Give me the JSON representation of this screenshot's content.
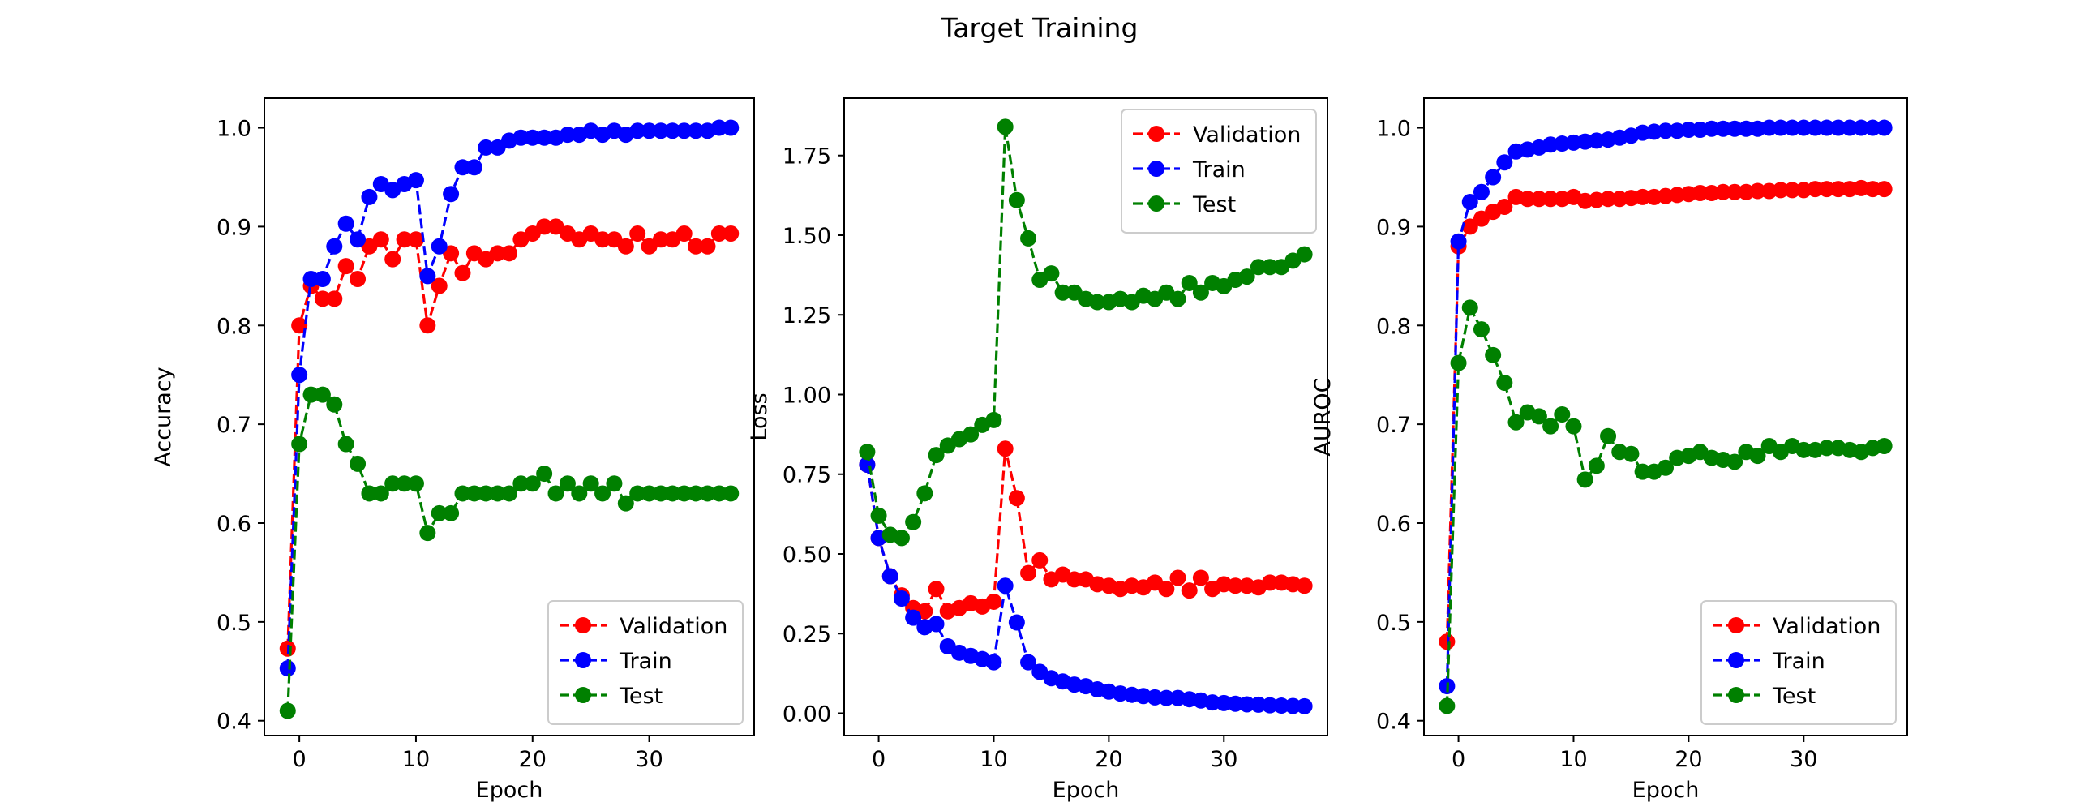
{
  "figure": {
    "title": "Target Training"
  },
  "legend_labels": [
    "Validation",
    "Train",
    "Test"
  ],
  "series_colors": {
    "Validation": "#ff0000",
    "Train": "#0000ff",
    "Test": "#008000"
  },
  "chart_data": [
    {
      "type": "line",
      "xlabel": "Epoch",
      "ylabel": "Accuracy",
      "xlim": [
        -3,
        39
      ],
      "ylim": [
        0.385,
        1.03
      ],
      "x_ticks": [
        0,
        10,
        20,
        30
      ],
      "y_ticks": [
        0.4,
        0.5,
        0.6,
        0.7,
        0.8,
        0.9,
        1.0
      ],
      "y_tick_labels": [
        "0.4",
        "0.5",
        "0.6",
        "0.7",
        "0.8",
        "0.9",
        "1.0"
      ],
      "grid": false,
      "legend_position": "lower-right",
      "x": [
        -1,
        0,
        1,
        2,
        3,
        4,
        5,
        6,
        7,
        8,
        9,
        10,
        11,
        12,
        13,
        14,
        15,
        16,
        17,
        18,
        19,
        20,
        21,
        22,
        23,
        24,
        25,
        26,
        27,
        28,
        29,
        30,
        31,
        32,
        33,
        34,
        35,
        36,
        37
      ],
      "series": [
        {
          "name": "Validation",
          "color": "#ff0000",
          "values": [
            0.473,
            0.8,
            0.84,
            0.827,
            0.827,
            0.86,
            0.847,
            0.88,
            0.887,
            0.867,
            0.887,
            0.887,
            0.8,
            0.84,
            0.873,
            0.853,
            0.873,
            0.867,
            0.873,
            0.873,
            0.887,
            0.893,
            0.9,
            0.9,
            0.893,
            0.887,
            0.893,
            0.887,
            0.887,
            0.88,
            0.893,
            0.88,
            0.887,
            0.887,
            0.893,
            0.88,
            0.88,
            0.893,
            0.893
          ]
        },
        {
          "name": "Train",
          "color": "#0000ff",
          "values": [
            0.453,
            0.75,
            0.847,
            0.847,
            0.88,
            0.903,
            0.887,
            0.93,
            0.943,
            0.937,
            0.943,
            0.947,
            0.85,
            0.88,
            0.933,
            0.96,
            0.96,
            0.98,
            0.98,
            0.987,
            0.99,
            0.99,
            0.99,
            0.99,
            0.993,
            0.993,
            0.997,
            0.993,
            0.997,
            0.993,
            0.997,
            0.997,
            0.997,
            0.997,
            0.997,
            0.997,
            0.997,
            1.0,
            1.0
          ]
        },
        {
          "name": "Test",
          "color": "#008000",
          "values": [
            0.41,
            0.68,
            0.73,
            0.73,
            0.72,
            0.68,
            0.66,
            0.63,
            0.63,
            0.64,
            0.64,
            0.64,
            0.59,
            0.61,
            0.61,
            0.63,
            0.63,
            0.63,
            0.63,
            0.63,
            0.64,
            0.64,
            0.65,
            0.63,
            0.64,
            0.63,
            0.64,
            0.63,
            0.64,
            0.62,
            0.63,
            0.63,
            0.63,
            0.63,
            0.63,
            0.63,
            0.63,
            0.63,
            0.63
          ]
        }
      ]
    },
    {
      "type": "line",
      "xlabel": "Epoch",
      "ylabel": "Loss",
      "xlim": [
        -3,
        39
      ],
      "ylim": [
        -0.07,
        1.93
      ],
      "x_ticks": [
        0,
        10,
        20,
        30
      ],
      "y_ticks": [
        0.0,
        0.25,
        0.5,
        0.75,
        1.0,
        1.25,
        1.5,
        1.75
      ],
      "y_tick_labels": [
        "0.00",
        "0.25",
        "0.50",
        "0.75",
        "1.00",
        "1.25",
        "1.50",
        "1.75"
      ],
      "grid": false,
      "legend_position": "upper-right",
      "x": [
        -1,
        0,
        1,
        2,
        3,
        4,
        5,
        6,
        7,
        8,
        9,
        10,
        11,
        12,
        13,
        14,
        15,
        16,
        17,
        18,
        19,
        20,
        21,
        22,
        23,
        24,
        25,
        26,
        27,
        28,
        29,
        30,
        31,
        32,
        33,
        34,
        35,
        36,
        37
      ],
      "series": [
        {
          "name": "Validation",
          "color": "#ff0000",
          "values": [
            0.78,
            0.55,
            0.43,
            0.37,
            0.33,
            0.32,
            0.39,
            0.32,
            0.33,
            0.345,
            0.335,
            0.35,
            0.83,
            0.675,
            0.44,
            0.48,
            0.42,
            0.435,
            0.42,
            0.42,
            0.405,
            0.4,
            0.39,
            0.4,
            0.395,
            0.41,
            0.39,
            0.425,
            0.385,
            0.425,
            0.39,
            0.405,
            0.4,
            0.4,
            0.395,
            0.41,
            0.41,
            0.405,
            0.4
          ]
        },
        {
          "name": "Train",
          "color": "#0000ff",
          "values": [
            0.78,
            0.55,
            0.43,
            0.36,
            0.3,
            0.27,
            0.28,
            0.21,
            0.19,
            0.18,
            0.17,
            0.16,
            0.4,
            0.285,
            0.16,
            0.13,
            0.11,
            0.1,
            0.09,
            0.085,
            0.075,
            0.068,
            0.062,
            0.058,
            0.054,
            0.05,
            0.048,
            0.048,
            0.044,
            0.04,
            0.034,
            0.032,
            0.03,
            0.028,
            0.027,
            0.025,
            0.024,
            0.023,
            0.022
          ]
        },
        {
          "name": "Test",
          "color": "#008000",
          "values": [
            0.82,
            0.62,
            0.56,
            0.55,
            0.6,
            0.69,
            0.81,
            0.84,
            0.86,
            0.875,
            0.905,
            0.92,
            1.84,
            1.61,
            1.49,
            1.36,
            1.38,
            1.32,
            1.32,
            1.3,
            1.29,
            1.29,
            1.3,
            1.29,
            1.31,
            1.3,
            1.32,
            1.3,
            1.35,
            1.32,
            1.35,
            1.34,
            1.36,
            1.37,
            1.4,
            1.4,
            1.4,
            1.42,
            1.44
          ]
        }
      ]
    },
    {
      "type": "line",
      "xlabel": "Epoch",
      "ylabel": "AUROC",
      "xlim": [
        -3,
        39
      ],
      "ylim": [
        0.385,
        1.03
      ],
      "x_ticks": [
        0,
        10,
        20,
        30
      ],
      "y_ticks": [
        0.4,
        0.5,
        0.6,
        0.7,
        0.8,
        0.9,
        1.0
      ],
      "y_tick_labels": [
        "0.4",
        "0.5",
        "0.6",
        "0.7",
        "0.8",
        "0.9",
        "1.0"
      ],
      "grid": false,
      "legend_position": "lower-right",
      "x": [
        -1,
        0,
        1,
        2,
        3,
        4,
        5,
        6,
        7,
        8,
        9,
        10,
        11,
        12,
        13,
        14,
        15,
        16,
        17,
        18,
        19,
        20,
        21,
        22,
        23,
        24,
        25,
        26,
        27,
        28,
        29,
        30,
        31,
        32,
        33,
        34,
        35,
        36,
        37
      ],
      "series": [
        {
          "name": "Validation",
          "color": "#ff0000",
          "values": [
            0.48,
            0.88,
            0.9,
            0.908,
            0.915,
            0.92,
            0.93,
            0.928,
            0.928,
            0.928,
            0.928,
            0.93,
            0.926,
            0.927,
            0.928,
            0.928,
            0.929,
            0.93,
            0.93,
            0.931,
            0.932,
            0.933,
            0.934,
            0.934,
            0.935,
            0.935,
            0.935,
            0.936,
            0.936,
            0.937,
            0.937,
            0.937,
            0.938,
            0.938,
            0.938,
            0.938,
            0.939,
            0.938,
            0.938
          ]
        },
        {
          "name": "Train",
          "color": "#0000ff",
          "values": [
            0.435,
            0.885,
            0.925,
            0.935,
            0.95,
            0.965,
            0.976,
            0.978,
            0.98,
            0.983,
            0.984,
            0.985,
            0.986,
            0.987,
            0.988,
            0.99,
            0.992,
            0.995,
            0.996,
            0.997,
            0.997,
            0.998,
            0.998,
            0.999,
            0.999,
            0.999,
            0.999,
            0.999,
            1.0,
            1.0,
            1.0,
            1.0,
            1.0,
            1.0,
            1.0,
            1.0,
            1.0,
            1.0,
            1.0
          ]
        },
        {
          "name": "Test",
          "color": "#008000",
          "values": [
            0.415,
            0.762,
            0.818,
            0.796,
            0.77,
            0.742,
            0.702,
            0.712,
            0.708,
            0.698,
            0.71,
            0.698,
            0.644,
            0.658,
            0.688,
            0.672,
            0.67,
            0.652,
            0.652,
            0.656,
            0.666,
            0.668,
            0.672,
            0.666,
            0.664,
            0.662,
            0.672,
            0.668,
            0.678,
            0.672,
            0.678,
            0.674,
            0.674,
            0.676,
            0.676,
            0.674,
            0.672,
            0.676,
            0.678
          ]
        }
      ]
    }
  ]
}
